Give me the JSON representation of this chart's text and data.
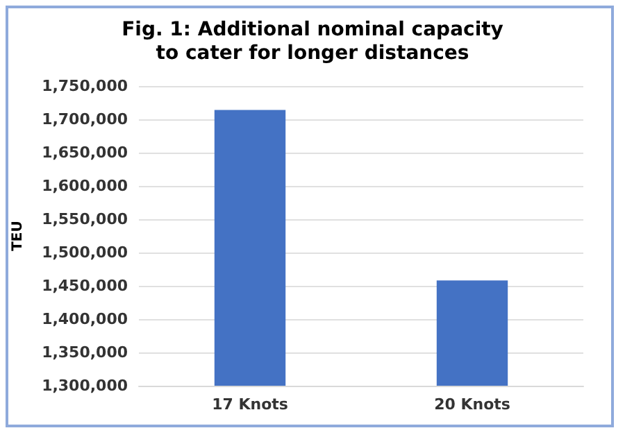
{
  "chart_data": {
    "type": "bar",
    "title": "Fig. 1: Additional nominal capacity\nto cater for longer distances",
    "ylabel": "TEU",
    "categories": [
      "17 Knots",
      "20 Knots"
    ],
    "values": [
      1714000,
      1458000
    ],
    "color": "#4472c4",
    "ylim": [
      1300000,
      1750000
    ],
    "yticks": [
      {
        "value": 1300000,
        "label": "1,300,000"
      },
      {
        "value": 1350000,
        "label": "1,350,000"
      },
      {
        "value": 1400000,
        "label": "1,400,000"
      },
      {
        "value": 1450000,
        "label": "1,450,000"
      },
      {
        "value": 1500000,
        "label": "1,500,000"
      },
      {
        "value": 1550000,
        "label": "1,550,000"
      },
      {
        "value": 1600000,
        "label": "1,600,000"
      },
      {
        "value": 1650000,
        "label": "1,650,000"
      },
      {
        "value": 1700000,
        "label": "1,700,000"
      },
      {
        "value": 1750000,
        "label": "1,750,000"
      }
    ],
    "grid": "y"
  }
}
